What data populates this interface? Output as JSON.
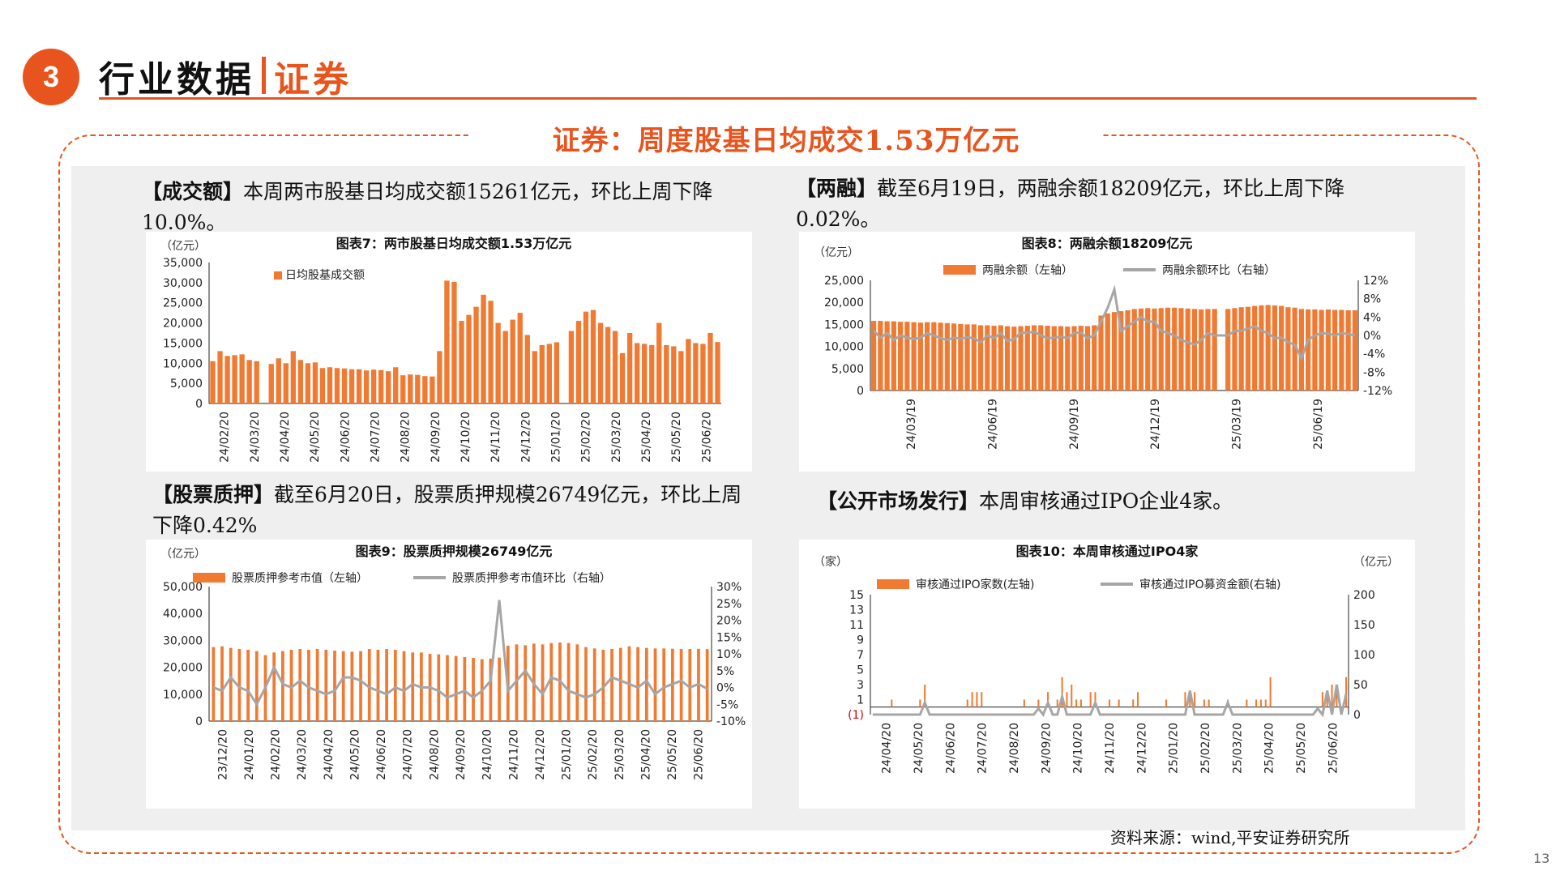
{
  "header": {
    "section_number": "3",
    "title": "行业数据",
    "subtitle": "证券"
  },
  "main_title": "证券：周度股基日均成交1.53万亿元",
  "paragraphs": {
    "p1_bold": "【成交额】",
    "p1_text": "本周两市股基日均成交额15261亿元，环比上周下降10.0%。",
    "p2_bold": "【两融】",
    "p2_text": "截至6月19日，两融余额18209亿元，环比上周下降0.02%。",
    "p3_bold": "【股票质押】",
    "p3_text": "截至6月20日，股票质押规模26749亿元，环比上周下降0.42%",
    "p4_bold": "【公开市场发行】",
    "p4_text": "本周审核通过IPO企业4家。"
  },
  "source": "资料来源：wind,平安证券研究所",
  "page_number": "13",
  "colors": {
    "accent": "#e8541e",
    "bar": "#f07a32",
    "line": "#a6a6a6"
  },
  "chart_data": [
    {
      "type": "bar",
      "title": "图表7：两市股基日均成交额1.53万亿元",
      "unit_label": "（亿元）",
      "legend": [
        "日均股基成交额"
      ],
      "yticks": [
        "35,000",
        "30,000",
        "25,000",
        "20,000",
        "15,000",
        "10,000",
        "5,000",
        "0"
      ],
      "ylim": [
        0,
        35000
      ],
      "xticks": [
        "24/02/20",
        "24/03/20",
        "24/04/20",
        "24/05/20",
        "24/06/20",
        "24/07/20",
        "24/08/20",
        "24/09/20",
        "24/10/20",
        "24/11/20",
        "24/12/20",
        "25/01/20",
        "25/02/20",
        "25/03/20",
        "25/04/20",
        "25/05/20",
        "25/06/20"
      ],
      "values": [
        10500,
        13000,
        11800,
        12000,
        12200,
        10800,
        10500,
        0,
        9800,
        11200,
        10000,
        13000,
        10800,
        10000,
        10200,
        8800,
        9000,
        8800,
        8700,
        8500,
        8500,
        8200,
        8400,
        8300,
        8000,
        9000,
        7000,
        7200,
        7100,
        6800,
        6700,
        13000,
        30500,
        30200,
        20500,
        22000,
        24000,
        27000,
        25500,
        20000,
        18000,
        20800,
        22500,
        17000,
        13000,
        14500,
        14800,
        15200,
        0,
        18000,
        20500,
        22800,
        23200,
        20000,
        19000,
        18000,
        12500,
        17500,
        15000,
        14800,
        14500,
        20000,
        14500,
        14200,
        13000,
        16000,
        15000,
        14800,
        17500,
        15261
      ],
      "legend_position": "top-left"
    },
    {
      "type": "bar+line",
      "title": "图表8：两融余额18209亿元",
      "unit_label": "（亿元）",
      "series": [
        {
          "name": "两融余额（左轴）",
          "axis": "left"
        },
        {
          "name": "两融余额环比（右轴）",
          "axis": "right"
        }
      ],
      "yticks_left": [
        "25,000",
        "20,000",
        "15,000",
        "10,000",
        "5,000",
        "0"
      ],
      "yticks_right": [
        "12%",
        "8%",
        "4%",
        "0%",
        "-4%",
        "-8%",
        "-12%"
      ],
      "ylim_left": [
        0,
        25000
      ],
      "ylim_right": [
        -12,
        12
      ],
      "xticks": [
        "24/03/19",
        "24/06/19",
        "24/09/19",
        "24/12/19",
        "25/03/19",
        "25/06/19"
      ],
      "bar_values": [
        15800,
        15800,
        15700,
        15700,
        15600,
        15600,
        15500,
        15400,
        15500,
        15500,
        15400,
        15300,
        15200,
        15100,
        15000,
        15000,
        14800,
        14800,
        14700,
        14800,
        14600,
        14500,
        14600,
        14700,
        14800,
        14800,
        14700,
        14600,
        14600,
        14500,
        14600,
        14700,
        14600,
        14800,
        17000,
        17500,
        17800,
        18000,
        18200,
        18500,
        18600,
        18700,
        18600,
        18700,
        18800,
        18800,
        18700,
        18600,
        18500,
        18400,
        18500,
        18500,
        0,
        18500,
        18700,
        18900,
        19000,
        19200,
        19300,
        19400,
        19300,
        19200,
        18900,
        18800,
        18500,
        18400,
        18400,
        18300,
        18400,
        18300,
        18300,
        18200,
        18209
      ],
      "line_values": [
        1,
        -0.5,
        0.5,
        -1,
        0,
        -0.5,
        -0.8,
        -0.5,
        0.5,
        0,
        -0.6,
        -1,
        -0.5,
        -0.7,
        -0.4,
        -0.6,
        -1.5,
        0,
        -0.6,
        0.5,
        -1.2,
        -0.8,
        0.6,
        0.6,
        0.8,
        0,
        -0.6,
        -0.5,
        -0.3,
        -0.6,
        0.6,
        0.6,
        -0.6,
        0,
        3,
        6,
        10,
        1,
        2,
        3,
        4,
        3,
        3,
        1,
        0.5,
        0,
        -1,
        -1.5,
        -2,
        -1,
        0.5,
        0,
        0,
        0,
        1,
        1,
        1.5,
        2,
        1,
        0.5,
        -0.6,
        -0.5,
        -1.5,
        -2,
        -5,
        -1,
        0,
        0.5,
        0.4,
        0,
        0.5,
        0.3,
        -0.02
      ],
      "legend_position": "top"
    },
    {
      "type": "bar+line",
      "title": "图表9：股票质押规模26749亿元",
      "unit_label": "（亿元）",
      "series": [
        {
          "name": "股票质押参考市值（左轴）",
          "axis": "left"
        },
        {
          "name": "股票质押参考市值环比（右轴）",
          "axis": "right"
        }
      ],
      "yticks_left": [
        "50,000",
        "40,000",
        "30,000",
        "20,000",
        "10,000",
        "0"
      ],
      "yticks_right": [
        "30%",
        "25%",
        "20%",
        "15%",
        "10%",
        "5%",
        "0%",
        "-5%",
        "-10%"
      ],
      "ylim_left": [
        0,
        50000
      ],
      "ylim_right": [
        -10,
        30
      ],
      "xticks": [
        "23/12/20",
        "24/01/20",
        "24/02/20",
        "24/03/20",
        "24/04/20",
        "24/05/20",
        "24/06/20",
        "24/07/20",
        "24/08/20",
        "24/09/20",
        "24/10/20",
        "24/11/20",
        "24/12/20",
        "25/01/20",
        "25/02/20",
        "25/03/20",
        "25/04/20",
        "25/05/20",
        "25/06/20"
      ],
      "bar_values": [
        27500,
        27800,
        27200,
        26800,
        26500,
        26000,
        24500,
        25500,
        26000,
        26500,
        26800,
        26500,
        26800,
        26500,
        26200,
        26000,
        25800,
        26000,
        26800,
        26500,
        26800,
        26500,
        26000,
        25500,
        25500,
        25000,
        24800,
        24500,
        24200,
        23800,
        23500,
        23000,
        23200,
        23600,
        28000,
        28500,
        28200,
        28800,
        28500,
        29000,
        29200,
        29000,
        28500,
        27500,
        27000,
        26500,
        26800,
        27200,
        27800,
        27500,
        27200,
        27000,
        27000,
        26900,
        26800,
        26800,
        26850,
        26749
      ],
      "line_values": [
        0,
        -1,
        3,
        0,
        -1,
        -5,
        0,
        6,
        1,
        0,
        2,
        0,
        -1,
        -2,
        -1,
        3,
        3,
        2,
        0,
        -1,
        -2,
        0,
        -1,
        1,
        0,
        0,
        -1,
        -3,
        -2,
        -1,
        -3,
        -1,
        2,
        26,
        -1,
        2,
        5,
        1,
        -2,
        3,
        2,
        -1,
        -2,
        -3,
        -2,
        0,
        3,
        2,
        1,
        0,
        2,
        -2,
        0,
        1,
        2,
        0,
        1,
        -0.42
      ],
      "legend_position": "top"
    },
    {
      "type": "bar+line",
      "title": "图表10：本周审核通过IPO4家",
      "unit_label_left": "（家）",
      "unit_label_right": "（亿元）",
      "series": [
        {
          "name": "审核通过IPO家数(左轴)",
          "axis": "left"
        },
        {
          "name": "审核通过IPO募资金额(右轴)",
          "axis": "right"
        }
      ],
      "yticks_left": [
        "15",
        "13",
        "11",
        "9",
        "7",
        "5",
        "3",
        "1",
        "(1)"
      ],
      "yticks_right": [
        "200",
        "150",
        "100",
        "50",
        "0"
      ],
      "ylim_left": [
        -1,
        15
      ],
      "ylim_right": [
        0,
        200
      ],
      "xticks": [
        "24/04/20",
        "24/05/20",
        "24/06/20",
        "24/07/20",
        "24/08/20",
        "24/09/20",
        "24/10/20",
        "24/11/20",
        "24/12/20",
        "25/01/20",
        "25/02/20",
        "25/03/20",
        "25/04/20",
        "25/05/20",
        "25/06/20"
      ],
      "bar_values": [
        0,
        0,
        0,
        0,
        1,
        0,
        0,
        0,
        0,
        0,
        1,
        3,
        0,
        0,
        0,
        0,
        0,
        0,
        0,
        0,
        1,
        2,
        2,
        2,
        0,
        0,
        0,
        0,
        0,
        0,
        0,
        0,
        1,
        0,
        0,
        1,
        0,
        2,
        0,
        1,
        4,
        2,
        3,
        1,
        1,
        0,
        2,
        2,
        0,
        0,
        1,
        0,
        1,
        0,
        0,
        1,
        2,
        0,
        0,
        0,
        0,
        0,
        1,
        0,
        0,
        0,
        2,
        2,
        2,
        0,
        1,
        1,
        0,
        0,
        0,
        1,
        0,
        0,
        0,
        1,
        0,
        1,
        1,
        1,
        4,
        0,
        0,
        0,
        0,
        0,
        0,
        0,
        0,
        0,
        0,
        2,
        2,
        3,
        2,
        0,
        4
      ],
      "line_values": [
        0,
        0,
        0,
        0,
        0,
        0,
        0,
        0,
        0,
        0,
        0,
        20,
        0,
        0,
        0,
        0,
        0,
        0,
        0,
        0,
        0,
        0,
        0,
        0,
        0,
        0,
        0,
        0,
        0,
        0,
        0,
        0,
        0,
        0,
        0,
        10,
        0,
        20,
        0,
        0,
        30,
        0,
        0,
        0,
        0,
        0,
        0,
        20,
        0,
        0,
        0,
        0,
        0,
        0,
        0,
        0,
        0,
        0,
        0,
        0,
        0,
        0,
        0,
        0,
        0,
        0,
        0,
        40,
        0,
        0,
        0,
        0,
        0,
        0,
        0,
        20,
        0,
        0,
        0,
        0,
        0,
        0,
        0,
        0,
        0,
        0,
        0,
        0,
        0,
        0,
        0,
        0,
        0,
        0,
        10,
        0,
        40,
        0,
        50,
        0,
        35
      ],
      "legend_position": "top"
    }
  ]
}
